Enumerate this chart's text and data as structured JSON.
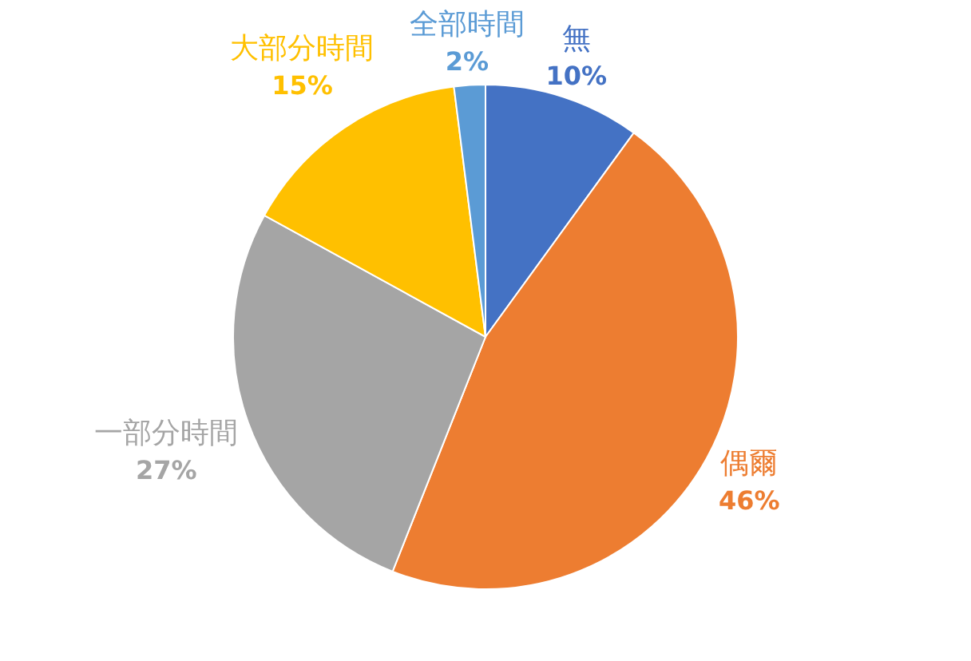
{
  "chart_data": {
    "type": "pie",
    "categories": [
      "無",
      "偶爾",
      "一部分時間",
      "大部分時間",
      "全部時間"
    ],
    "values": [
      10,
      46,
      27,
      15,
      2
    ],
    "colors": [
      "#4472c4",
      "#ed7d31",
      "#a5a5a5",
      "#ffc000",
      "#5b9bd5"
    ],
    "value_labels": [
      "10%",
      "46%",
      "27%",
      "15%",
      "2%"
    ]
  }
}
